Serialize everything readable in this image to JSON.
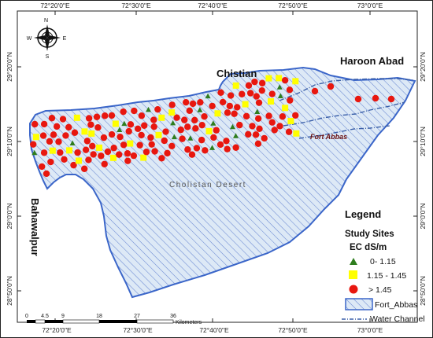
{
  "map": {
    "top_ticks": [
      "72°20'0\"E",
      "72°30'0\"E",
      "72°40'0\"E",
      "72°50'0\"E",
      "73°0'0\"E"
    ],
    "bottom_ticks": [
      "72°20'0\"E",
      "72°30'0\"E",
      "72°40'0\"E",
      "72°50'0\"E",
      "73°0'0\"E"
    ],
    "left_ticks": [
      "29°20'0\"N",
      "29°10'0\"N",
      "29°0'0\"N",
      "28°50'0\"N"
    ],
    "right_ticks": [
      "29°20'0\"N",
      "29°10'0\"N",
      "29°0'0\"N",
      "28°50'0\"N"
    ],
    "places": {
      "chistian": "Chistian",
      "haroon_abad": "Haroon Abad",
      "fort_abbas": "Fort Abbas",
      "cholistan": "Cholistan Desert",
      "bahawalpur": "Bahawalpur"
    },
    "compass": {
      "n": "N",
      "s": "S",
      "e": "E",
      "w": "W"
    },
    "scale": {
      "ticks": [
        "0",
        "4.5",
        "9",
        "18",
        "27",
        "36"
      ],
      "unit": "Kilometers"
    },
    "colors": {
      "low": "#2e7d1e",
      "mid": "#ffff00",
      "high": "#e8170f",
      "boundary": "#3a63c8",
      "fill": "#d6e6f7",
      "hatch": "#5f7fd0",
      "channel": "#3a5fa8"
    }
  },
  "legend": {
    "title": "Legend",
    "study_sites": "Study Sites",
    "ec_title": "EC dS/m",
    "items": [
      {
        "label": "0- 1.15",
        "symbol": "triangle-icon"
      },
      {
        "label": "1.15 - 1.45",
        "symbol": "square-icon"
      },
      {
        "label": "> 1.45",
        "symbol": "circle-icon"
      }
    ],
    "boundary_label": "Fort_Abbas",
    "channel_label": "Water Channel"
  }
}
